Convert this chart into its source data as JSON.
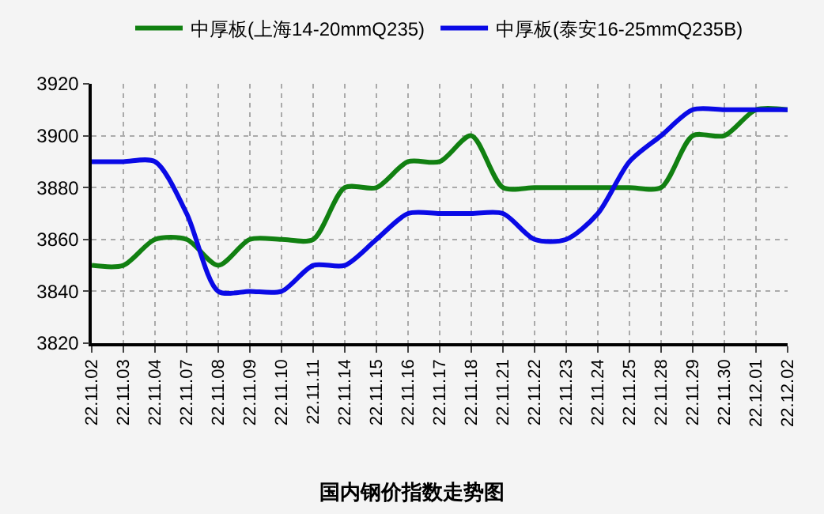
{
  "chart_data": {
    "type": "line",
    "title": "国内钢价指数走势图",
    "categories": [
      "22.11.02",
      "22.11.03",
      "22.11.04",
      "22.11.07",
      "22.11.08",
      "22.11.09",
      "22.11.10",
      "22.11.11",
      "22.11.14",
      "22.11.15",
      "22.11.16",
      "22.11.17",
      "22.11.18",
      "22.11.21",
      "22.11.22",
      "22.11.23",
      "22.11.24",
      "22.11.25",
      "22.11.28",
      "22.11.29",
      "22.11.30",
      "22.12.01",
      "22.12.02"
    ],
    "series": [
      {
        "name": "中厚板(上海14-20mmQ235)",
        "color": "#118011",
        "values": [
          3850,
          3850,
          3860,
          3860,
          3850,
          3860,
          3860,
          3860,
          3880,
          3880,
          3890,
          3890,
          3900,
          3880,
          3880,
          3880,
          3880,
          3880,
          3880,
          3900,
          3900,
          3910,
          3910
        ]
      },
      {
        "name": "中厚板(泰安16-25mmQ235B)",
        "color": "#0a0ae6",
        "values": [
          3890,
          3890,
          3890,
          3870,
          3840,
          3840,
          3840,
          3850,
          3850,
          3860,
          3870,
          3870,
          3870,
          3870,
          3860,
          3860,
          3870,
          3890,
          3900,
          3910,
          3910,
          3910,
          3910
        ]
      }
    ],
    "ylim": [
      3820,
      3920
    ],
    "yticks": [
      3820,
      3840,
      3860,
      3880,
      3900,
      3920
    ],
    "grid": true,
    "legend": "top",
    "marker": "none",
    "line_style": "solid"
  }
}
